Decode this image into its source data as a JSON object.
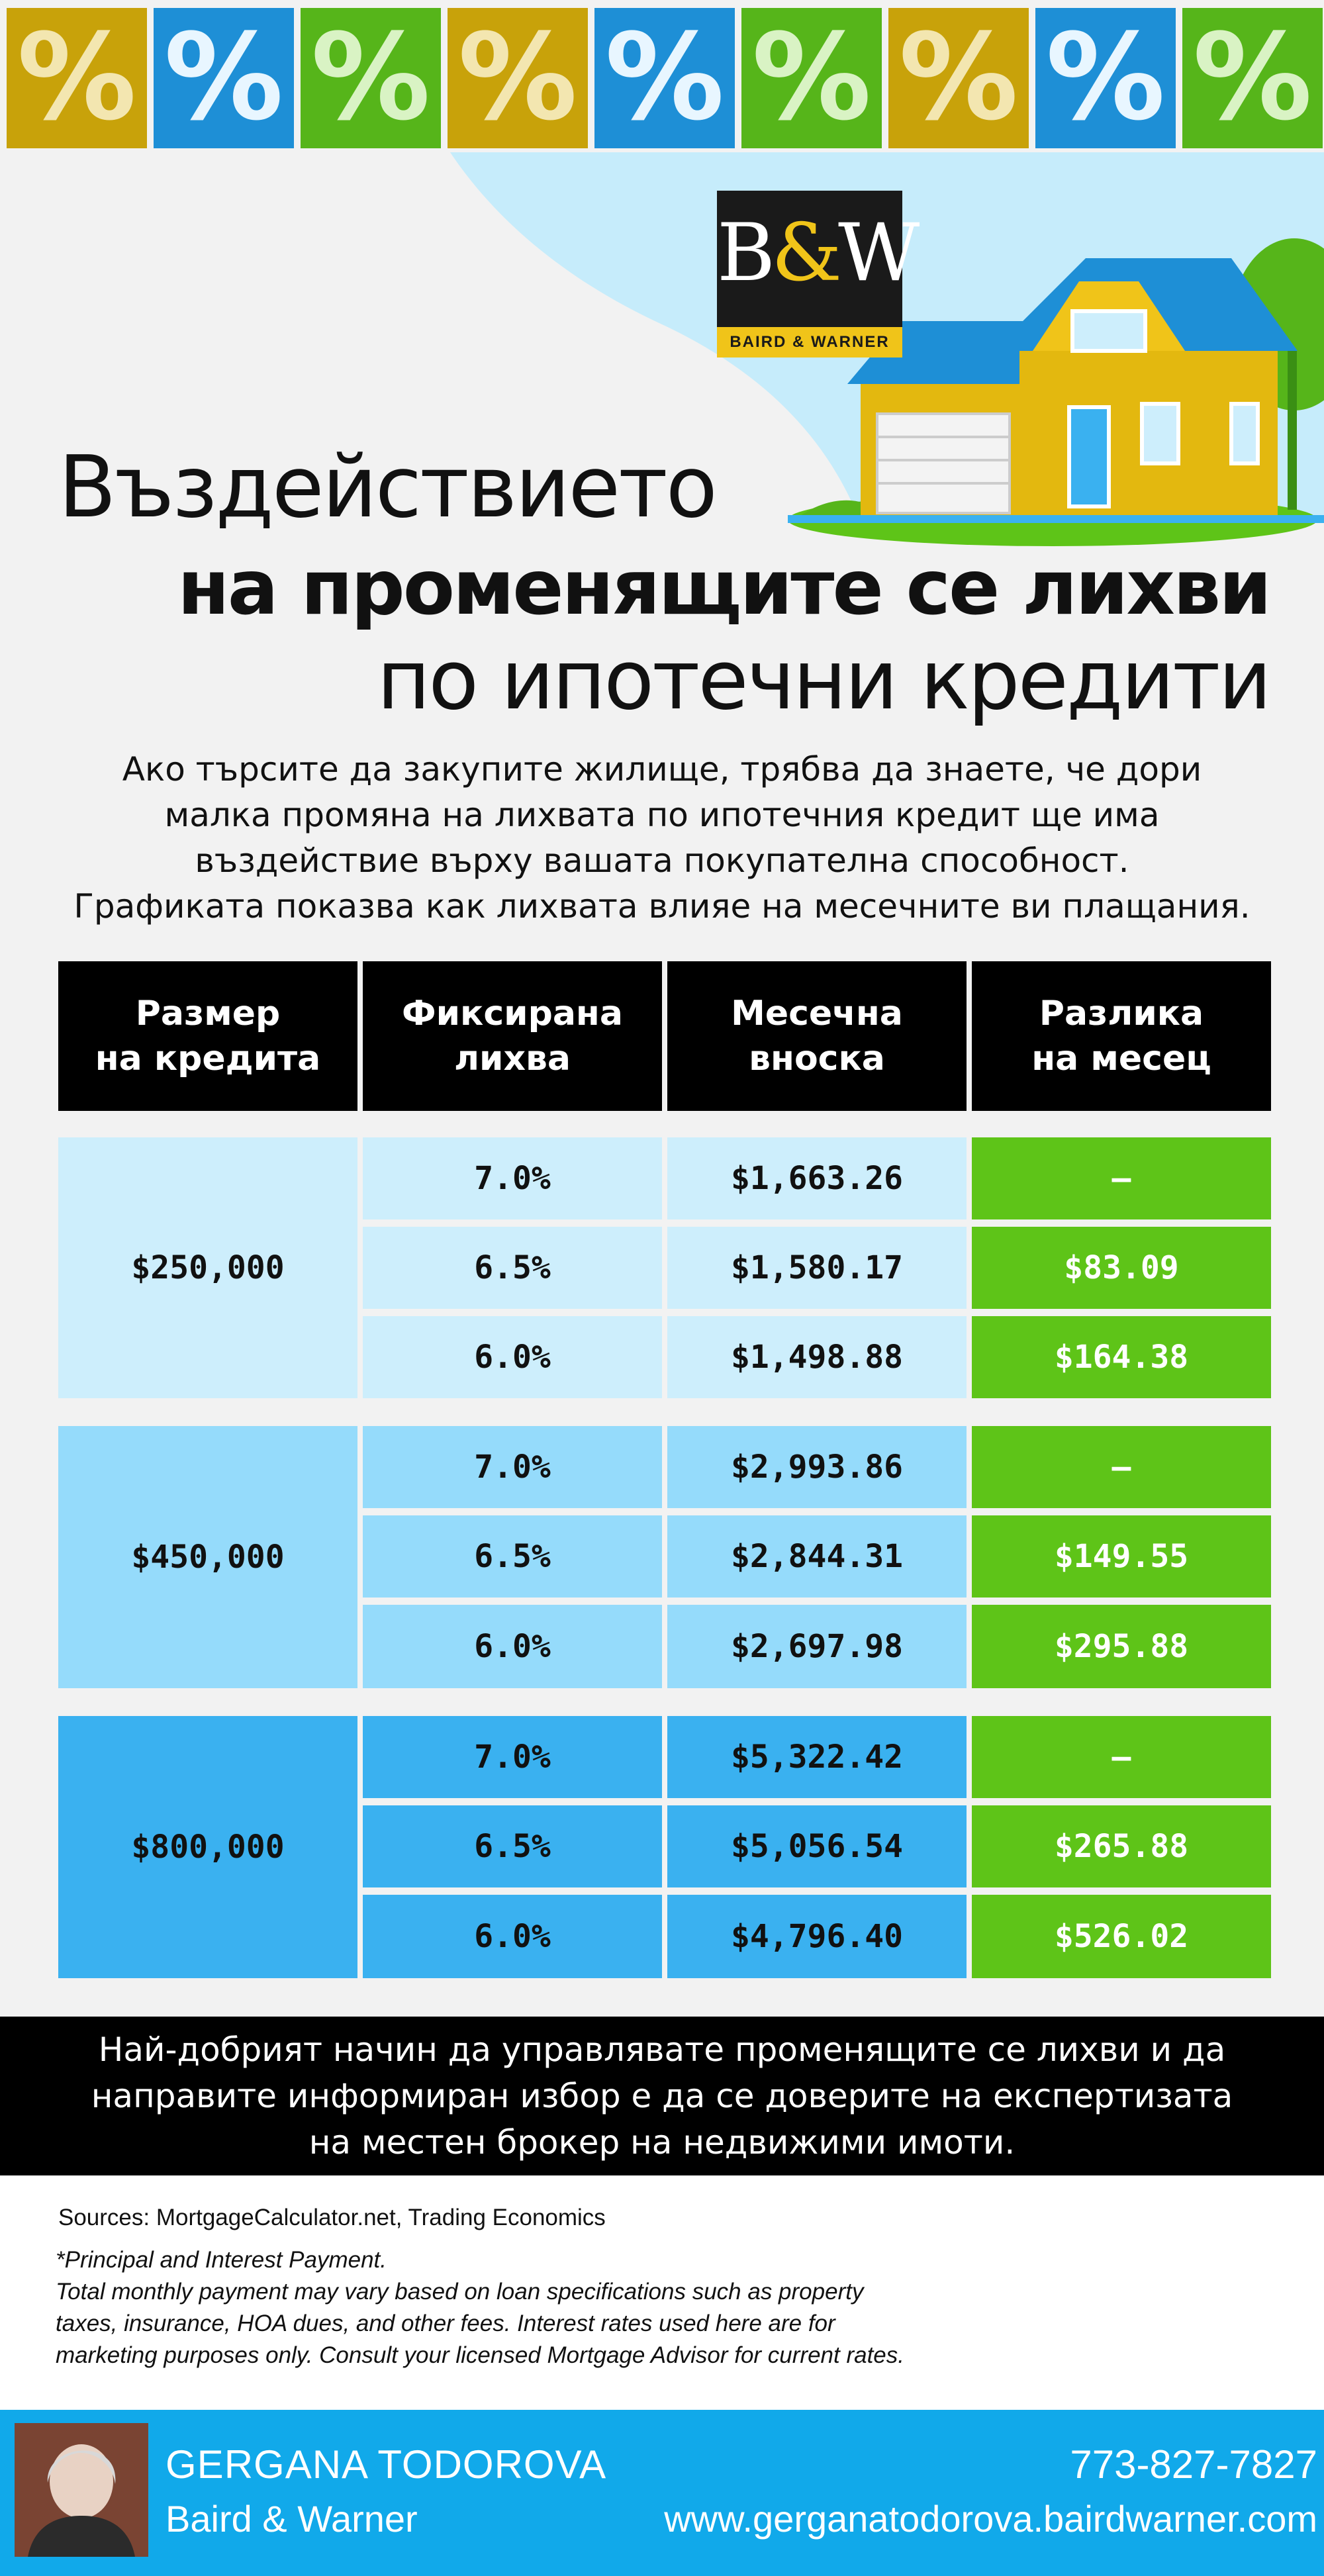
{
  "colors": {
    "gold": "#c8a20a",
    "blue": "#1e8fd6",
    "green": "#5ec418",
    "light_blue_1": "#cdeefc",
    "light_blue_2": "#95dbfb",
    "light_blue_3": "#3ab1f0",
    "black": "#000000",
    "footer_blue": "#11a9ea"
  },
  "tiles": [
    "%",
    "%",
    "%",
    "%",
    "%",
    "%",
    "%",
    "%",
    "%"
  ],
  "logo": {
    "mark_b": "B",
    "mark_amp": "&",
    "mark_w": "W",
    "band_text": "BAIRD & WARNER"
  },
  "title": {
    "line1": "Въздействието",
    "line2": "на променящите се лихви",
    "line3": "по ипотечни кредити"
  },
  "intro": [
    "Ако търсите да закупите жилище, трябва да знаете, че дори",
    "малка промяна на лихвата по ипотечния кредит ще има",
    "въздействие върху вашата покупателна способност.",
    "Графиката показва как лихвата влияе на месечните ви плащания."
  ],
  "table": {
    "headers": [
      [
        "Размер",
        "на кредита"
      ],
      [
        "Фиксирана",
        "лихва"
      ],
      [
        "Месечна",
        "вноска"
      ],
      [
        "Разлика",
        "на месец"
      ]
    ],
    "groups": [
      {
        "loan": "$250,000",
        "rows": [
          {
            "rate": "7.0%",
            "payment": "$1,663.26",
            "diff": "—"
          },
          {
            "rate": "6.5%",
            "payment": "$1,580.17",
            "diff": "$83.09"
          },
          {
            "rate": "6.0%",
            "payment": "$1,498.88",
            "diff": "$164.38"
          }
        ]
      },
      {
        "loan": "$450,000",
        "rows": [
          {
            "rate": "7.0%",
            "payment": "$2,993.86",
            "diff": "—"
          },
          {
            "rate": "6.5%",
            "payment": "$2,844.31",
            "diff": "$149.55"
          },
          {
            "rate": "6.0%",
            "payment": "$2,697.98",
            "diff": "$295.88"
          }
        ]
      },
      {
        "loan": "$800,000",
        "rows": [
          {
            "rate": "7.0%",
            "payment": "$5,322.42",
            "diff": "—"
          },
          {
            "rate": "6.5%",
            "payment": "$5,056.54",
            "diff": "$265.88"
          },
          {
            "rate": "6.0%",
            "payment": "$4,796.40",
            "diff": "$526.02"
          }
        ]
      }
    ]
  },
  "cta": [
    "Най-добрият начин да управлявате променящите се лихви и да",
    "направите информиран избор е да се доверите на експертизата",
    "на местен брокер на недвижими имоти."
  ],
  "sources": "Sources: MortgageCalculator.net, Trading Economics",
  "disclaimer": [
    "*Principal and Interest Payment.",
    "Total monthly payment may vary based on loan specifications such as property",
    "taxes, insurance, HOA dues, and other fees. Interest rates used here are for",
    "marketing purposes only. Consult your licensed Mortgage Advisor for current rates."
  ],
  "footer": {
    "name": "GERGANA TODOROVA",
    "company": "Baird & Warner",
    "phone": "773-827-7827",
    "website": "www.gerganatodorova.bairdwarner.com"
  }
}
